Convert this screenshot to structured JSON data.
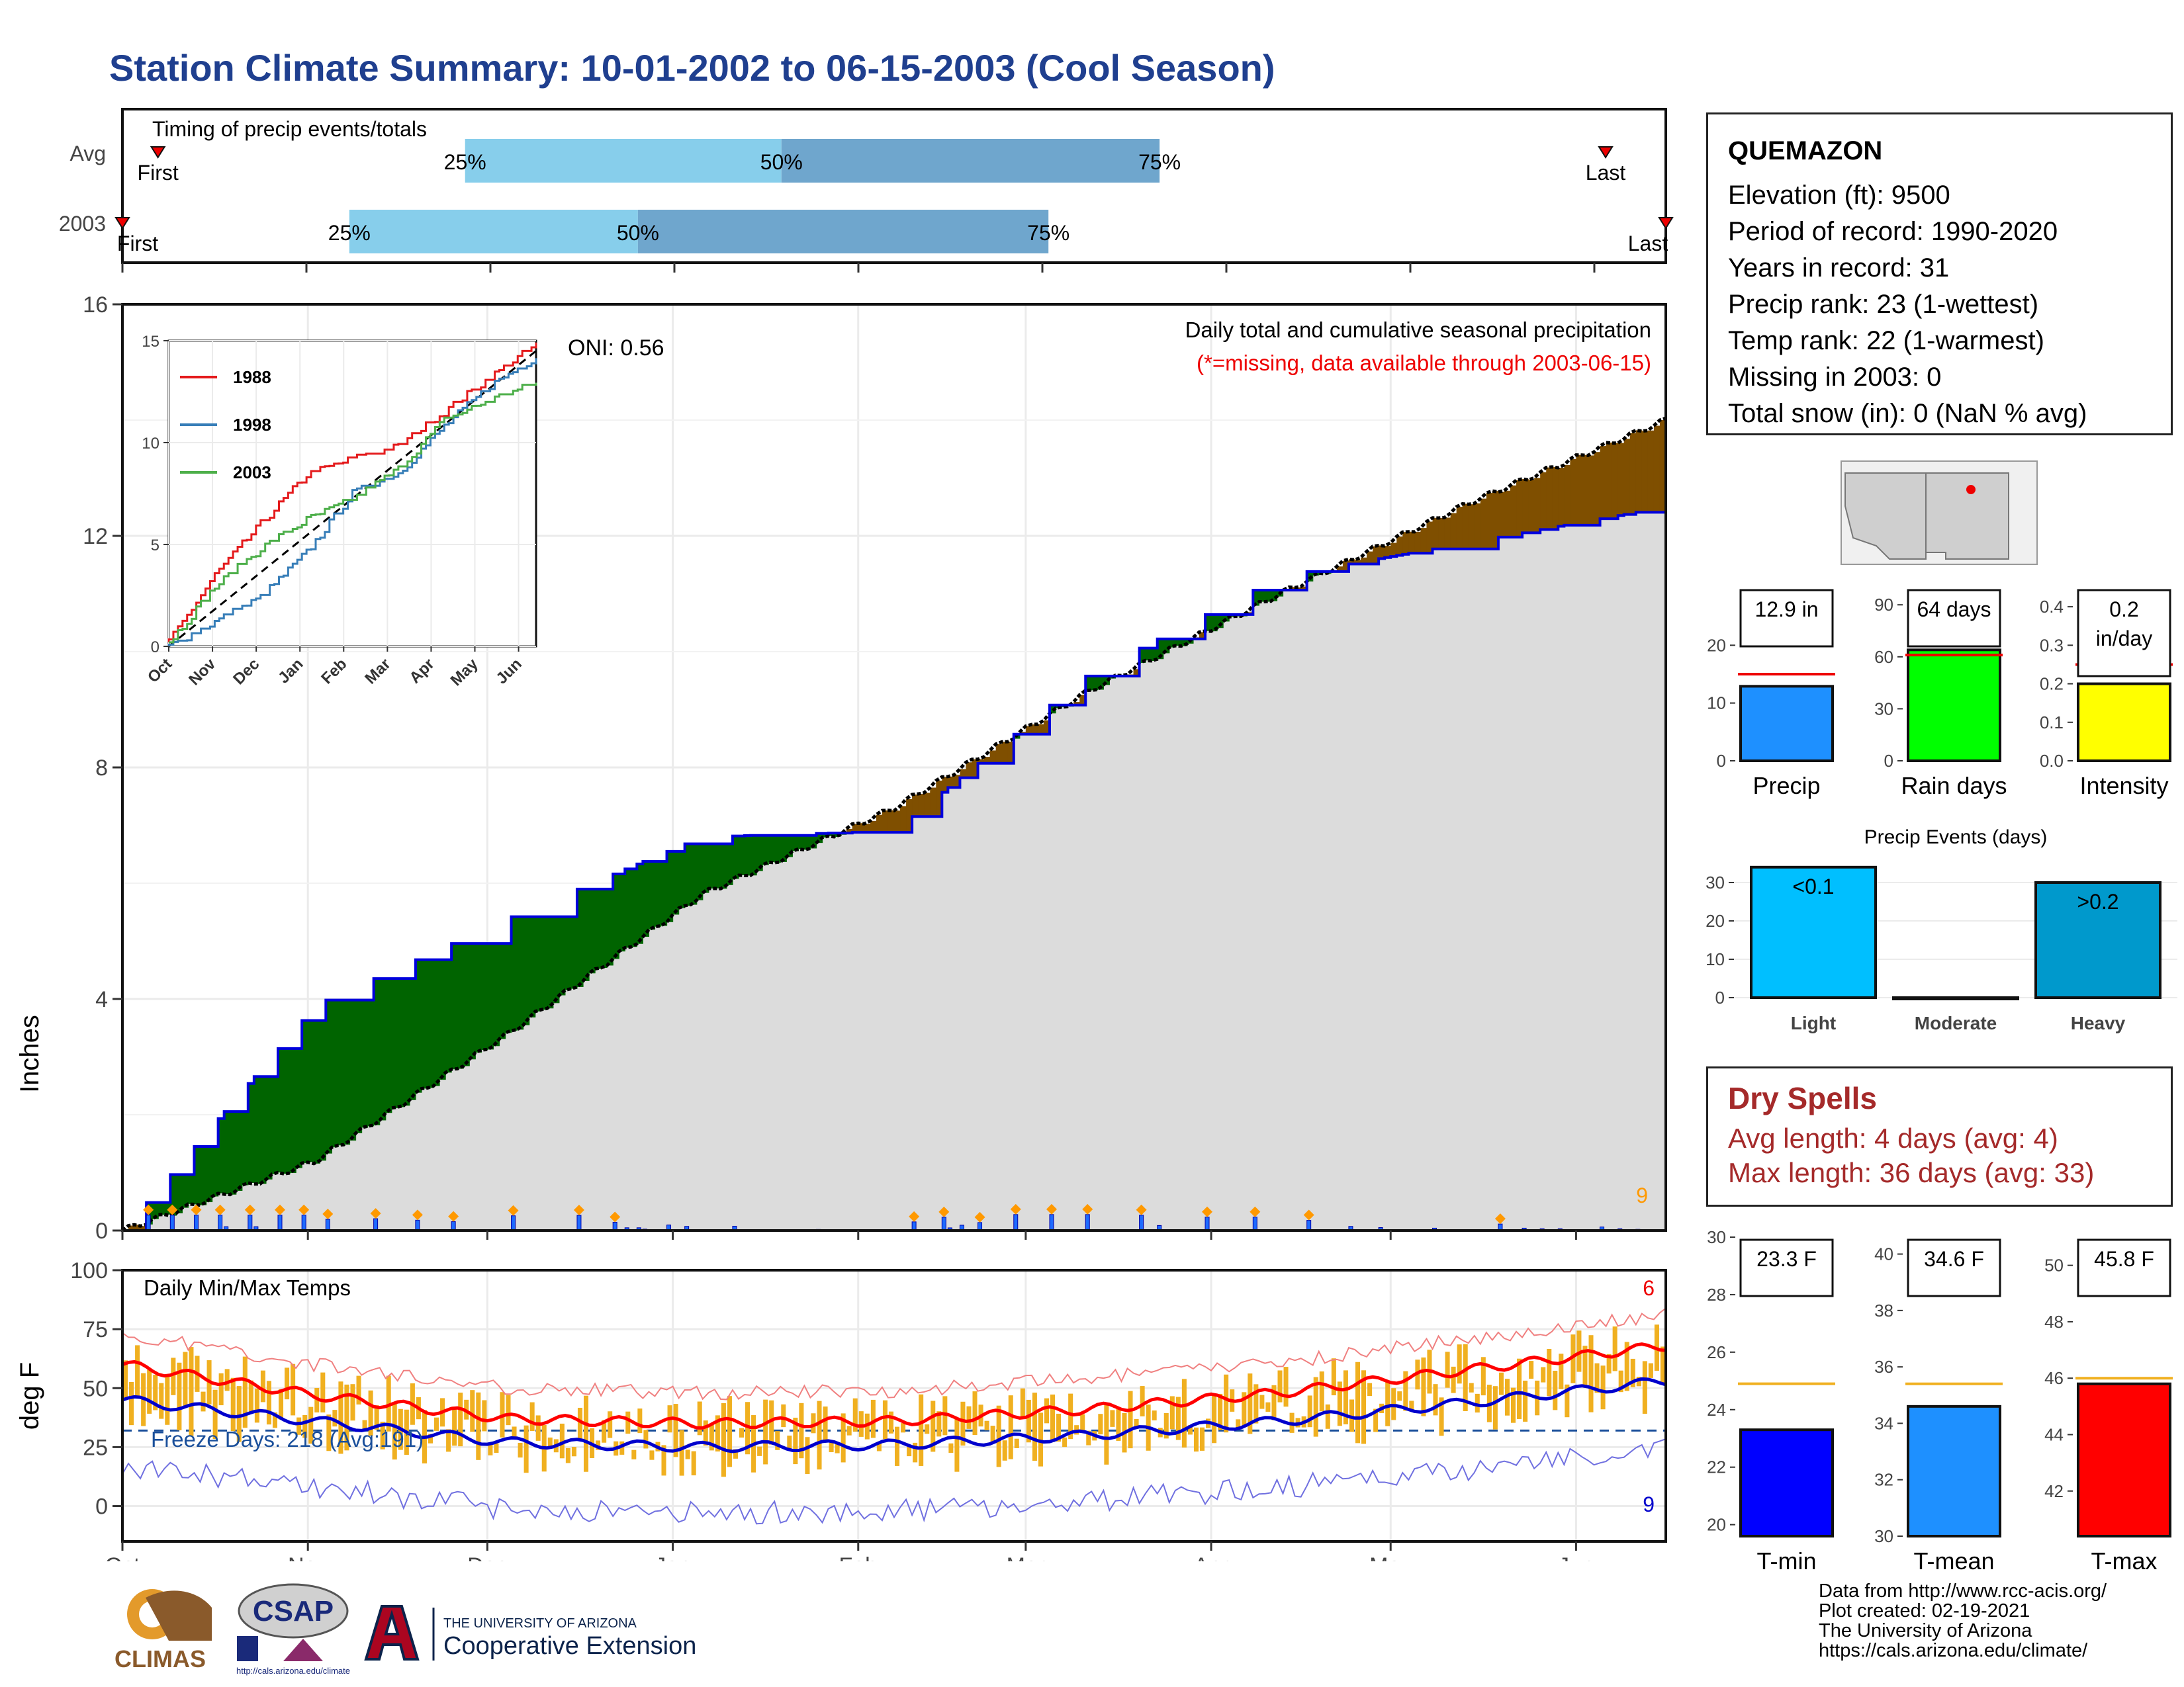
{
  "title": "Station Climate Summary: 10-01-2002 to 06-15-2003 (Cool Season)",
  "colors": {
    "title": "#1f3f8f",
    "precip_above": "#006400",
    "precip_below": "#7f4f00",
    "avg_fill": "#dcdcdc",
    "bar_light": "#87ceeb",
    "bar_dark": "#6fa6cd",
    "tmax_line": "#ff0000",
    "tmin_line": "#0000cc",
    "range_bars": "#f0b020"
  },
  "timing": {
    "label": "Timing of precip events/totals",
    "rows": [
      {
        "name": "Avg",
        "p25": "25%",
        "p50": "50%",
        "p75": "75%",
        "first": "First",
        "last": "Last"
      },
      {
        "name": "2003",
        "p25": "25%",
        "p50": "50%",
        "p75": "75%",
        "first": "First",
        "last": "Last"
      }
    ],
    "values": [
      {
        "p25": 0.222,
        "p50": 0.427,
        "p75": 0.672,
        "first": 0.023,
        "last": 0.961
      },
      {
        "p25": 0.147,
        "p50": 0.334,
        "p75": 0.6,
        "first": 0.0,
        "last": 1.0
      }
    ]
  },
  "station": {
    "name": "QUEMAZON",
    "lines": [
      "Elevation (ft): 9500",
      "Period of record: 1990-2020",
      "Years in record: 31",
      "Precip rank: 23 (1-wettest)",
      "Temp rank: 22 (1-warmest)",
      "Missing in 2003: 0",
      "Total snow (in): 0 (NaN % avg)"
    ]
  },
  "main_chart": {
    "ylabel": "Inches",
    "y_ticks": [
      "0",
      "4",
      "8",
      "12",
      "16"
    ],
    "oni": "ONI: 0.56",
    "note1": "Daily total and cumulative seasonal precipitation",
    "note2": "(*=missing, data available through 2003-06-15)",
    "corner_count": "9"
  },
  "inset": {
    "legend": [
      "1988",
      "1998",
      "2003"
    ],
    "y_ticks": [
      "0",
      "5",
      "10",
      "15"
    ],
    "x_ticks": [
      "Oct",
      "Nov",
      "Dec",
      "Jan",
      "Feb",
      "Mar",
      "Apr",
      "May",
      "Jun"
    ]
  },
  "temp_chart": {
    "ylabel": "deg F",
    "title": "Daily Min/Max Temps",
    "freeze": "Freeze Days: 218 (Avg:191)",
    "y_ticks": [
      "0",
      "25",
      "50",
      "75",
      "100"
    ],
    "x_ticks": [
      "Oct",
      "Nov",
      "Dec",
      "Jan",
      "Feb",
      "Mar",
      "Apr",
      "May",
      "Jun"
    ],
    "top_count": "6",
    "bottom_count": "9"
  },
  "chart_data": [
    {
      "type": "area",
      "title": "Daily total and cumulative seasonal precipitation",
      "ylabel": "Inches",
      "ylim": [
        0,
        16
      ],
      "x": [
        "Oct",
        "Nov",
        "Dec",
        "Jan",
        "Feb",
        "Mar",
        "Apr",
        "May",
        "Jun"
      ],
      "series": [
        {
          "name": "2003",
          "values": [
            0.0,
            3.9,
            5.4,
            6.8,
            6.9,
            9.6,
            11.3,
            11.9,
            12.5
          ]
        },
        {
          "name": "Avg",
          "values": [
            0.0,
            1.2,
            3.4,
            5.8,
            7.3,
            9.3,
            11.0,
            12.6,
            14.0
          ]
        }
      ]
    },
    {
      "type": "line",
      "title": "",
      "ylim": [
        0,
        15
      ],
      "x": [
        "Oct",
        "Nov",
        "Dec",
        "Jan",
        "Feb",
        "Mar",
        "Apr",
        "May",
        "Jun"
      ],
      "series": [
        {
          "name": "1988",
          "values": [
            0.2,
            3.5,
            6.0,
            8.4,
            9.2,
            9.8,
            11.5,
            13.2,
            14.8
          ]
        },
        {
          "name": "1998",
          "values": [
            0.0,
            1.2,
            2.4,
            4.6,
            7.5,
            8.5,
            10.8,
            12.8,
            14.2
          ]
        },
        {
          "name": "2003",
          "values": [
            0.2,
            2.9,
            4.8,
            6.2,
            7.2,
            8.7,
            11.1,
            12.1,
            12.9
          ]
        }
      ]
    },
    {
      "type": "line",
      "title": "Daily Min/Max Temps",
      "ylabel": "deg F",
      "ylim": [
        -15,
        100
      ],
      "x": [
        "Oct",
        "Nov",
        "Dec",
        "Jan",
        "Feb",
        "Mar",
        "Apr",
        "May",
        "Jun"
      ],
      "series": [
        {
          "name": "Avg max",
          "values": [
            60,
            47,
            37,
            35,
            36,
            41,
            48,
            58,
            68
          ]
        },
        {
          "name": "Avg min",
          "values": [
            35,
            26,
            17,
            15,
            16,
            20,
            26,
            34,
            43
          ]
        }
      ]
    },
    {
      "type": "bar",
      "title": "",
      "categories": [
        "Precip",
        "Rain days",
        "Intensity"
      ],
      "labels": [
        "12.9 in",
        "64 days",
        "0.2"
      ],
      "units_extra": "in/day",
      "values": [
        12.9,
        64,
        0.2
      ],
      "averages": [
        15.0,
        61,
        0.25
      ],
      "ylims": [
        [
          0,
          30
        ],
        [
          0,
          100
        ],
        [
          0,
          0.45
        ]
      ],
      "y_ticks": [
        [
          "0",
          "10",
          "20"
        ],
        [
          "0",
          "30",
          "60",
          "90"
        ],
        [
          "0.0",
          "0.1",
          "0.2",
          "0.3",
          "0.4"
        ]
      ]
    },
    {
      "type": "bar",
      "title": "Precip Events (days)",
      "categories": [
        "Light",
        "Moderate",
        "Heavy"
      ],
      "labels": [
        "<0.1",
        "",
        ">0.2"
      ],
      "values": [
        34,
        0,
        30
      ],
      "ylim": [
        0,
        35
      ],
      "y_ticks": [
        "0",
        "10",
        "20",
        "30"
      ]
    },
    {
      "type": "bar",
      "title": "",
      "categories": [
        "T-min",
        "T-mean",
        "T-max"
      ],
      "labels": [
        "23.3 F",
        "34.6 F",
        "45.8 F"
      ],
      "values": [
        23.3,
        34.6,
        45.8
      ],
      "averages": [
        24.9,
        35.4,
        46.0
      ],
      "ylims": [
        [
          19.6,
          30
        ],
        [
          30,
          40.6
        ],
        [
          40.4,
          51
        ]
      ],
      "y_ticks": [
        [
          "20",
          "22",
          "24",
          "26",
          "28",
          "30"
        ],
        [
          "30",
          "32",
          "34",
          "36",
          "38",
          "40"
        ],
        [
          "42",
          "44",
          "46",
          "48",
          "50"
        ]
      ]
    }
  ],
  "dry_spells": {
    "heading": "Dry Spells",
    "avg": "Avg length: 4 days (avg: 4)",
    "max": "Max length: 36 days (avg: 33)"
  },
  "logos": {
    "climas": "CLIMAS",
    "csap": "CSAP",
    "csap_url": "http://cals.arizona.edu/climate",
    "ua_top": "THE UNIVERSITY OF ARIZONA",
    "ua_bottom": "Cooperative Extension"
  },
  "credits": [
    "Data from http://www.rcc-acis.org/",
    "Plot created: 02-19-2021",
    "The University of Arizona",
    "https://cals.arizona.edu/climate/"
  ]
}
